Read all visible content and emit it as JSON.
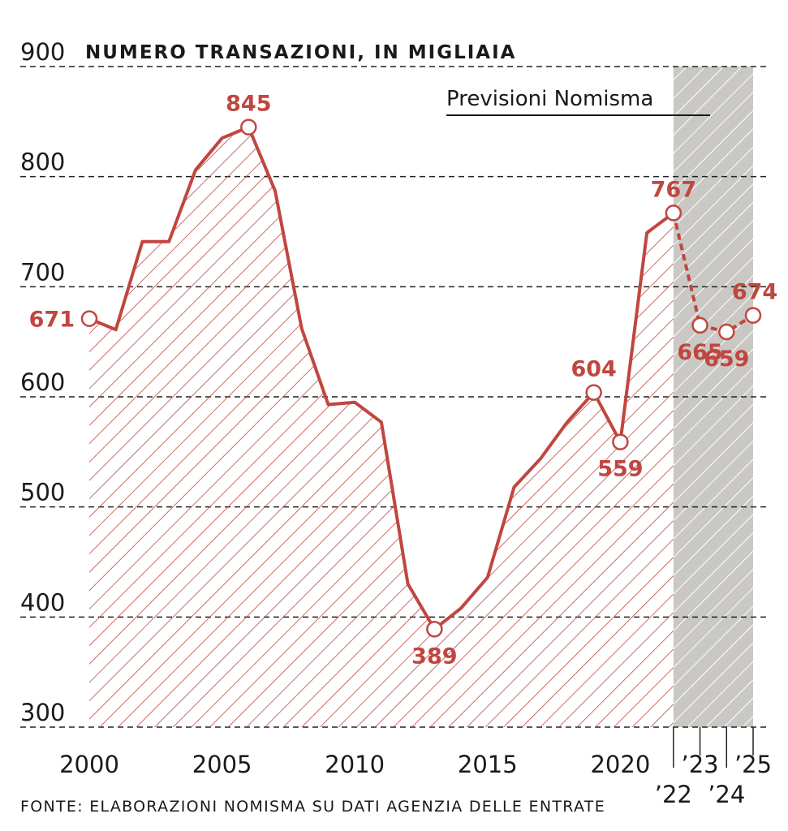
{
  "chart_data": {
    "type": "line",
    "title": "NUMERO TRANSAZIONI, IN MIGLIAIA",
    "annotation": "Previsioni Nomisma",
    "source": "FONTE: ELABORAZIONI NOMISMA SU DATI AGENZIA DELLE ENTRATE",
    "x": [
      2000,
      2001,
      2002,
      2003,
      2004,
      2005,
      2006,
      2007,
      2008,
      2009,
      2010,
      2011,
      2012,
      2013,
      2014,
      2015,
      2016,
      2017,
      2018,
      2019,
      2020,
      2021,
      2022,
      2023,
      2024,
      2025
    ],
    "values": [
      671,
      661,
      741,
      741,
      806,
      835,
      845,
      787,
      662,
      593,
      595,
      577,
      430,
      389,
      408,
      436,
      518,
      544,
      577,
      604,
      559,
      749,
      767,
      665,
      659,
      674
    ],
    "color": "#c0463f",
    "labeled": [
      2000,
      2006,
      2013,
      2019,
      2020,
      2022,
      2023,
      2024,
      2025
    ],
    "forecast_start": 2022,
    "xlim": [
      2000,
      2025
    ],
    "ylim": [
      300,
      900
    ],
    "xticks": [
      2000,
      2005,
      2010,
      2015,
      2020,
      {
        "value": 2022,
        "label": "’22"
      },
      {
        "value": 2023,
        "label": "’23"
      },
      {
        "value": 2024,
        "label": "’24"
      },
      {
        "value": 2025,
        "label": "’25"
      }
    ],
    "yticks": [
      300,
      400,
      500,
      600,
      700,
      800,
      900
    ],
    "grid": true
  }
}
